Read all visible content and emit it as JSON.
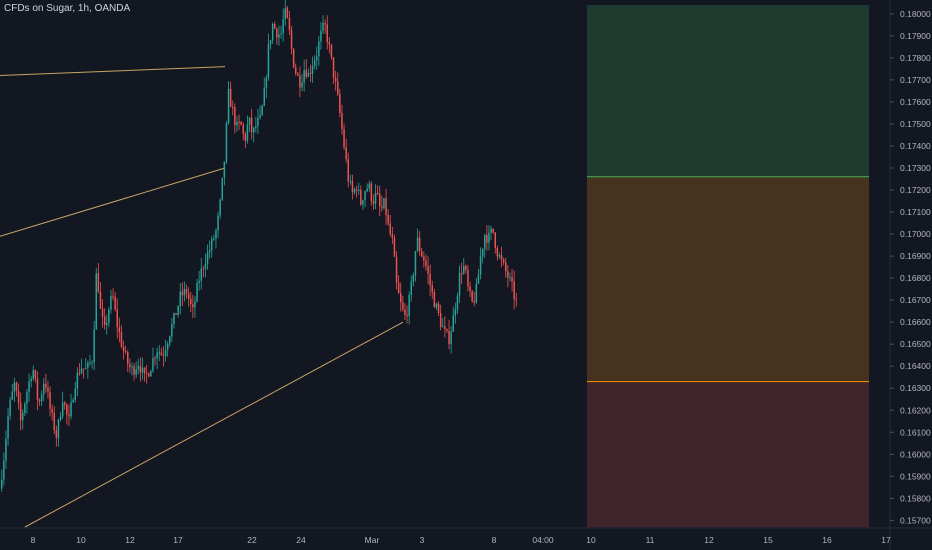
{
  "header": {
    "title": "CFDs on Sugar, 1h, OANDA"
  },
  "colors": {
    "background": "#131722",
    "up": "#26a69a",
    "down": "#ef5350",
    "trendline": "#c9a464",
    "profit_zone": "#1f3a2e",
    "mid_zone": "#45321f",
    "loss_zone": "#41232a",
    "target_line": "#4caf50",
    "stop_line": "#ff9800",
    "axis_text": "#b2b5be"
  },
  "chart_data": {
    "type": "candlestick",
    "symbol": "CFDs on Sugar",
    "interval": "1h",
    "source": "OANDA",
    "ylim": [
      0.1567,
      0.1804
    ],
    "y_ticks": [
      0.18,
      0.179,
      0.178,
      0.177,
      0.176,
      0.175,
      0.174,
      0.173,
      0.172,
      0.171,
      0.17,
      0.169,
      0.168,
      0.167,
      0.166,
      0.165,
      0.164,
      0.163,
      0.162,
      0.161,
      0.16,
      0.159,
      0.158,
      0.157
    ],
    "y_tick_labels": [
      "0.18000",
      "0.17900",
      "0.17800",
      "0.17700",
      "0.17600",
      "0.17500",
      "0.17400",
      "0.17300",
      "0.17200",
      "0.17100",
      "0.17000",
      "0.16900",
      "0.16800",
      "0.16700",
      "0.16600",
      "0.16500",
      "0.16400",
      "0.16300",
      "0.16200",
      "0.16100",
      "0.16000",
      "0.15900",
      "0.15800",
      "0.15700"
    ],
    "x_ticks": [
      "8",
      "10",
      "12",
      "17",
      "22",
      "24",
      "Mar",
      "3",
      "8",
      "04:00",
      "10",
      "11",
      "12",
      "15",
      "16",
      "17"
    ],
    "price_path": [
      [
        0,
        0.1581
      ],
      [
        5,
        0.1598
      ],
      [
        10,
        0.162
      ],
      [
        16,
        0.1632
      ],
      [
        22,
        0.1615
      ],
      [
        28,
        0.1628
      ],
      [
        34,
        0.164
      ],
      [
        40,
        0.1622
      ],
      [
        46,
        0.1635
      ],
      [
        52,
        0.1619
      ],
      [
        58,
        0.1608
      ],
      [
        64,
        0.1626
      ],
      [
        70,
        0.1614
      ],
      [
        76,
        0.1632
      ],
      [
        82,
        0.164
      ],
      [
        88,
        0.1638
      ],
      [
        94,
        0.1644
      ],
      [
        98,
        0.1685
      ],
      [
        102,
        0.1664
      ],
      [
        106,
        0.1656
      ],
      [
        110,
        0.1666
      ],
      [
        114,
        0.1672
      ],
      [
        118,
        0.166
      ],
      [
        122,
        0.1652
      ],
      [
        126,
        0.1645
      ],
      [
        130,
        0.164
      ],
      [
        134,
        0.1638
      ],
      [
        140,
        0.1642
      ],
      [
        146,
        0.1634
      ],
      [
        152,
        0.164
      ],
      [
        158,
        0.1648
      ],
      [
        164,
        0.1645
      ],
      [
        170,
        0.1654
      ],
      [
        176,
        0.1662
      ],
      [
        182,
        0.1672
      ],
      [
        188,
        0.1674
      ],
      [
        194,
        0.1664
      ],
      [
        200,
        0.1679
      ],
      [
        206,
        0.1688
      ],
      [
        212,
        0.1694
      ],
      [
        218,
        0.1702
      ],
      [
        222,
        0.1715
      ],
      [
        226,
        0.1735
      ],
      [
        230,
        0.1764
      ],
      [
        234,
        0.1756
      ],
      [
        238,
        0.1748
      ],
      [
        242,
        0.175
      ],
      [
        246,
        0.1742
      ],
      [
        250,
        0.1752
      ],
      [
        254,
        0.1745
      ],
      [
        258,
        0.175
      ],
      [
        262,
        0.1752
      ],
      [
        266,
        0.1765
      ],
      [
        270,
        0.1785
      ],
      [
        274,
        0.1795
      ],
      [
        278,
        0.1792
      ],
      [
        282,
        0.179
      ],
      [
        286,
        0.1801
      ],
      [
        290,
        0.1794
      ],
      [
        294,
        0.178
      ],
      [
        298,
        0.1772
      ],
      [
        302,
        0.1769
      ],
      [
        306,
        0.1776
      ],
      [
        310,
        0.1772
      ],
      [
        314,
        0.1778
      ],
      [
        318,
        0.1782
      ],
      [
        322,
        0.179
      ],
      [
        326,
        0.1795
      ],
      [
        330,
        0.1786
      ],
      [
        334,
        0.1775
      ],
      [
        338,
        0.1765
      ],
      [
        342,
        0.1752
      ],
      [
        346,
        0.1738
      ],
      [
        350,
        0.1724
      ],
      [
        354,
        0.1718
      ],
      [
        358,
        0.1722
      ],
      [
        362,
        0.1714
      ],
      [
        366,
        0.172
      ],
      [
        370,
        0.1722
      ],
      [
        374,
        0.1715
      ],
      [
        378,
        0.1718
      ],
      [
        382,
        0.171
      ],
      [
        386,
        0.1714
      ],
      [
        390,
        0.1702
      ],
      [
        394,
        0.1696
      ],
      [
        398,
        0.1676
      ],
      [
        402,
        0.1668
      ],
      [
        406,
        0.1662
      ],
      [
        410,
        0.1668
      ],
      [
        414,
        0.168
      ],
      [
        418,
        0.1698
      ],
      [
        422,
        0.1692
      ],
      [
        426,
        0.1688
      ],
      [
        430,
        0.168
      ],
      [
        434,
        0.1672
      ],
      [
        438,
        0.1666
      ],
      [
        442,
        0.166
      ],
      [
        446,
        0.1655
      ],
      [
        450,
        0.1652
      ],
      [
        454,
        0.166
      ],
      [
        458,
        0.1672
      ],
      [
        462,
        0.1684
      ],
      [
        466,
        0.1685
      ],
      [
        470,
        0.1673
      ],
      [
        474,
        0.1668
      ],
      [
        478,
        0.1675
      ],
      [
        482,
        0.169
      ],
      [
        486,
        0.17
      ],
      [
        490,
        0.1698
      ],
      [
        494,
        0.1702
      ],
      [
        498,
        0.1693
      ],
      [
        502,
        0.1688
      ],
      [
        506,
        0.1684
      ],
      [
        510,
        0.168
      ],
      [
        514,
        0.1675
      ],
      [
        517,
        0.1669
      ]
    ],
    "trendlines": [
      {
        "x1": 0,
        "y1": 0.1772,
        "x2": 225,
        "y2": 0.1776
      },
      {
        "x1": 0,
        "y1": 0.1699,
        "x2": 225,
        "y2": 0.173
      },
      {
        "x1": 25,
        "y1": 0.1567,
        "x2": 403,
        "y2": 0.166
      }
    ],
    "zones": {
      "x_start": 587,
      "x_end": 869,
      "profit": [
        0.1804,
        0.1726
      ],
      "neutral": [
        0.1726,
        0.1633
      ],
      "loss": [
        0.1633,
        0.1567
      ]
    }
  }
}
